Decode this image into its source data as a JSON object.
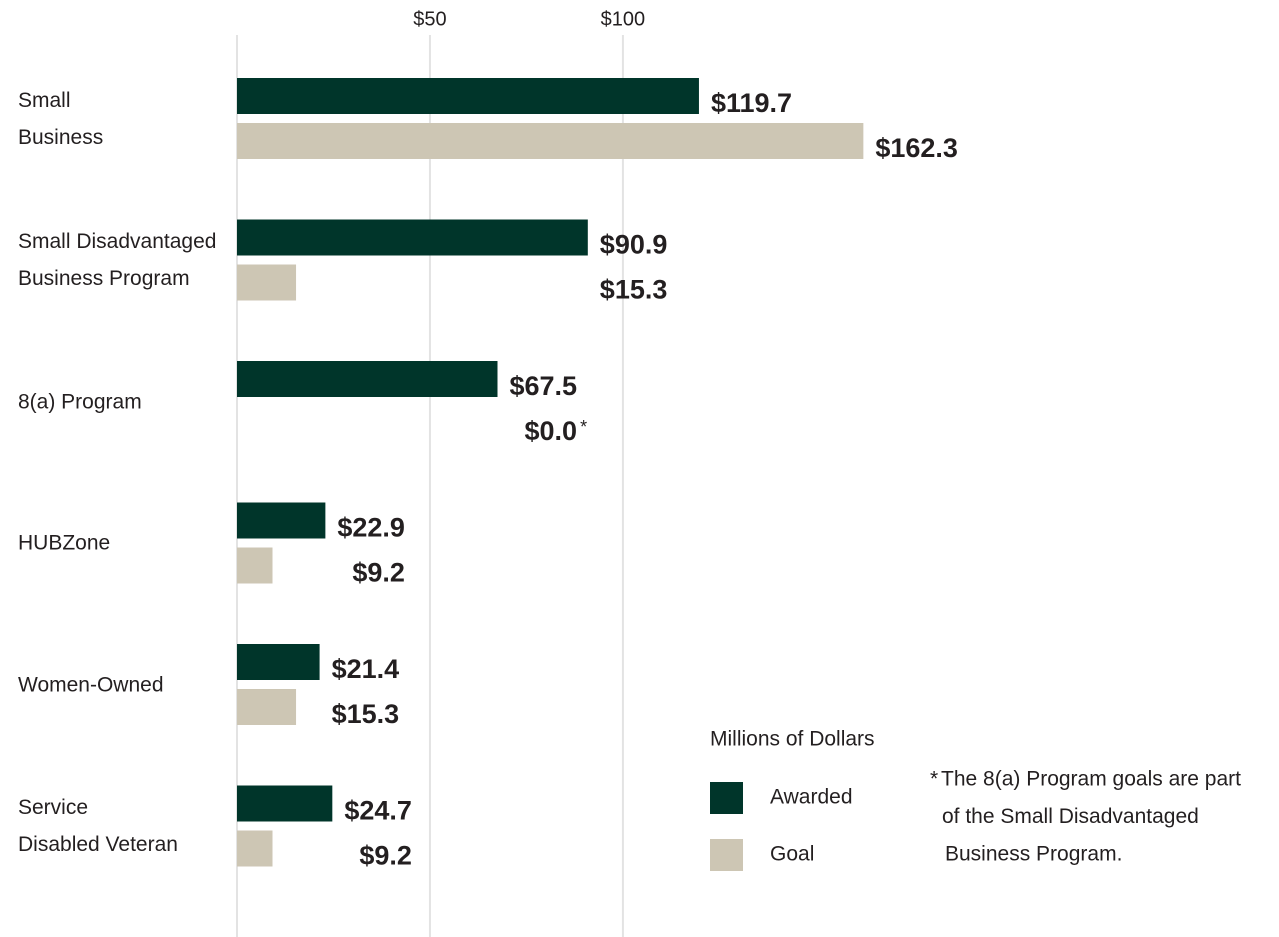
{
  "chart_data": {
    "type": "hbar",
    "categories": [
      "Small\nBusiness",
      "Small Disadvantaged\nBusiness Program",
      "8(a) Program",
      "HUBZone",
      "Women-Owned",
      "Service\nDisabled Veteran"
    ],
    "series": [
      {
        "name": "Awarded",
        "color": "#00352a",
        "values": [
          119.7,
          90.9,
          67.5,
          22.9,
          21.4,
          24.7
        ],
        "value_labels": [
          "$119.7",
          "$90.9",
          "$67.5",
          "$22.9",
          "$21.4",
          "$24.7"
        ]
      },
      {
        "name": "Goal",
        "color": "#cdc6b4",
        "values": [
          162.3,
          15.3,
          0.0,
          9.2,
          15.3,
          9.2
        ],
        "value_labels": [
          "$162.3",
          "$15.3",
          "$0.0",
          "$9.2",
          "$15.3",
          "$9.2"
        ]
      }
    ],
    "xlim": [
      0,
      270
    ],
    "xticks": [
      {
        "value": 50,
        "label": "$50"
      },
      {
        "value": 100,
        "label": "$100"
      }
    ],
    "grid": true,
    "legend_title": "Millions of Dollars",
    "footnote_marker": "*",
    "footnote": [
      "The 8(a) Program goals are part",
      "of the Small Disadvantaged",
      "Business Program."
    ]
  }
}
